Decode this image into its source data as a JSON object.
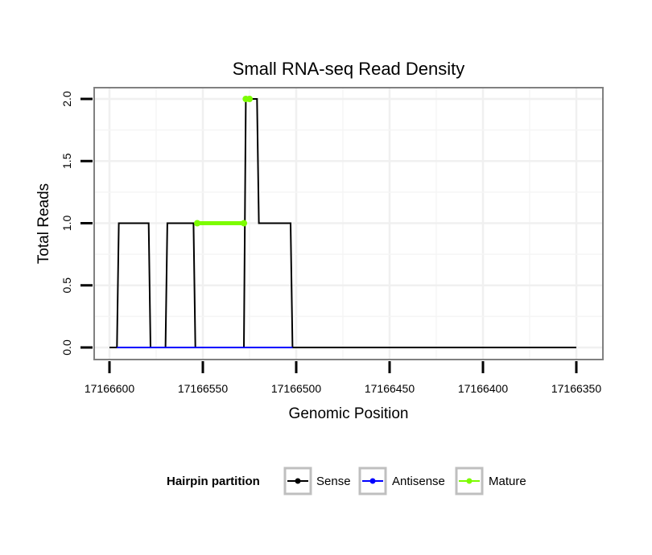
{
  "chart_data": {
    "type": "line",
    "title": "Small RNA-seq Read Density",
    "xlabel": "Genomic Position",
    "ylabel": "Total Reads",
    "x_reversed": true,
    "xlim": [
      17166605,
      17166350
    ],
    "ylim": [
      0,
      2
    ],
    "x_ticks": [
      17166600,
      17166550,
      17166500,
      17166450,
      17166400,
      17166350
    ],
    "x_tick_labels": [
      "17166600",
      "17166550",
      "17166500",
      "17166450",
      "17166400",
      "17166350"
    ],
    "y_ticks": [
      0,
      0.5,
      1,
      1.5,
      2
    ],
    "y_tick_labels": [
      "0.0",
      "0.5",
      "1.0",
      "1.5",
      "2.0"
    ],
    "grid": true,
    "legend": {
      "title": "Hairpin partition",
      "position": "bottom",
      "entries": [
        {
          "label": "Sense",
          "color": "#000000"
        },
        {
          "label": "Antisense",
          "color": "#0000ff"
        },
        {
          "label": "Mature",
          "color": "#7cfc00"
        }
      ]
    },
    "series": [
      {
        "name": "Sense",
        "color": "#000000",
        "x": [
          17166600,
          17166596,
          17166595,
          17166579,
          17166578,
          17166570,
          17166569,
          17166555,
          17166554,
          17166528,
          17166527,
          17166521,
          17166520,
          17166503,
          17166502,
          17166350
        ],
        "y": [
          0,
          0,
          1,
          1,
          0,
          0,
          1,
          1,
          0,
          0,
          2,
          2,
          1,
          1,
          0,
          0
        ]
      },
      {
        "name": "Antisense",
        "color": "#0000ff",
        "x": [
          17166596,
          17166502
        ],
        "y": [
          0,
          0
        ]
      },
      {
        "name": "Mature",
        "color": "#7cfc00",
        "segments": [
          {
            "x": [
              17166553,
              17166528
            ],
            "y": [
              1,
              1
            ]
          },
          {
            "x": [
              17166527,
              17166525
            ],
            "y": [
              2,
              2
            ]
          }
        ]
      }
    ]
  }
}
